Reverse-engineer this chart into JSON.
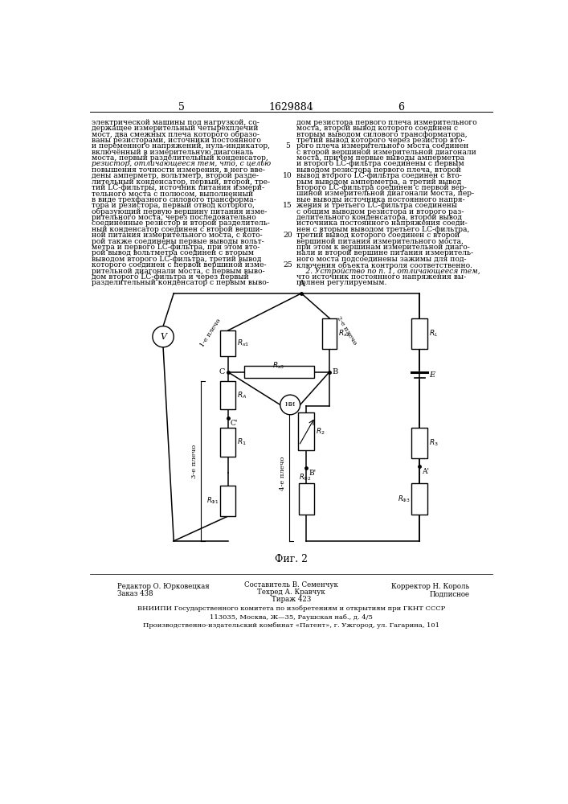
{
  "page_left": "5",
  "page_right": "6",
  "patent_number": "1629884",
  "fig_label": "Фиг. 2",
  "left_text": "электрической машины под нагрузкой, со-\nдержащее измерительный четырехплечий\nмост, два смежных плеча которого образо-\nваны резисторами, источники постоянного\nи переменного напряжений, нуль-индикатор,\nвключённый в измерительную диагональ\nмоста, первый разделительный конденсатор,\nрезистор, отличающееся тем, что, с целью\nповышения точности измерения, в него вве-\nдены амперметр, вольтметр, второй разде-\nлительный конденсатор, первый, второй, тре-\nтий LC-фильтры, источник питания измери-\nтельного моста с полюсом, выполненный\nв виде трехфазного силового трансформа-\nтора и резистора, первый отвод которого,\nобразующий первую вершину питания изме-\nрительного моста, через последовательно\nсоединённые резистор и второй разделитель-\nный конденсатор соединен с второй верши-\nной питания измерительного моста, с кото-\nрой также соединены первые выводы вольт-\nметра и первого LC-фильтра, при этом вто-\nрой вывод вольтметра соединен с вторым\nвыводом второго LC-фильтра, третий вывод\nкоторого соединен с первой вершиной изме-\nрительной диагонали моста, с первым выво-\nдом второго LC-фильтра и через первый\nразделительный конденсатор с первым выво-",
  "right_text": "дом резистора первого плеча измерительного\nмоста, второй вывод которого соединен с\nвторым выводом силового трансформатора,\nтретий вывод которого через резистор вто-\nрого плеча измерительного моста соединен\nс второй вершиной измерительной диагонали\nмоста, причем первые выводы амперметра\nи второго LC-фильтра соединены с первым\nвыводом резистора первого плеча, второй\nвывод второго LC-фильтра соединен с вто-\nрым выводом амперметра, а третий вывод\nвторого LC-фильтра соединен с первой вер-\nшиной измерительной диагонали моста, пер-\nвые выводы источника постоянного напря-\nжения и третьего LC-фильтра соединены\nс общим выводом резистора и второго раз-\nделительного конденсатора, второй вывод\nисточника постоянного напряжения соеди-\nнен с вторым выводом третьего LC-фильтра,\nтретий вывод которого соединен с второй\nвершиной питания измерительного моста,\nпри этом к вершинам измерительной диаго-\nнали и второй вершине питания измеритель-\nного моста подсоединены зажимы для под-\nключения объекта контроля соответственно.\n    2. Устройство по п. 1, отличающееся тем,\nчто источник постоянного напряжения вы-\nполнен регулируемым.",
  "line_numbers": [
    5,
    10,
    15,
    20,
    25
  ],
  "footer_editor": "Редактор О. Юрковецкая",
  "footer_order": "Заказ 438",
  "footer_author": "Составитель В. Семенчук",
  "footer_techred": "Техред А. Кравчук",
  "footer_tirazh": "Тираж 423",
  "footer_corrector": "Корректор Н. Король",
  "footer_podpisnoe": "Подписное",
  "footer_bottom1": "ВНИИПИ Государственного комитета по изобретениям и открытиям при ГКНТ СССР",
  "footer_bottom2": "113035, Москва, Ж—35, Раушская наб., д. 4/5",
  "footer_bottom3": "Производственно-издательский комбинат «Патент», г. Ужгород, ул. Гагарина, 101",
  "bg_color": "#ffffff"
}
